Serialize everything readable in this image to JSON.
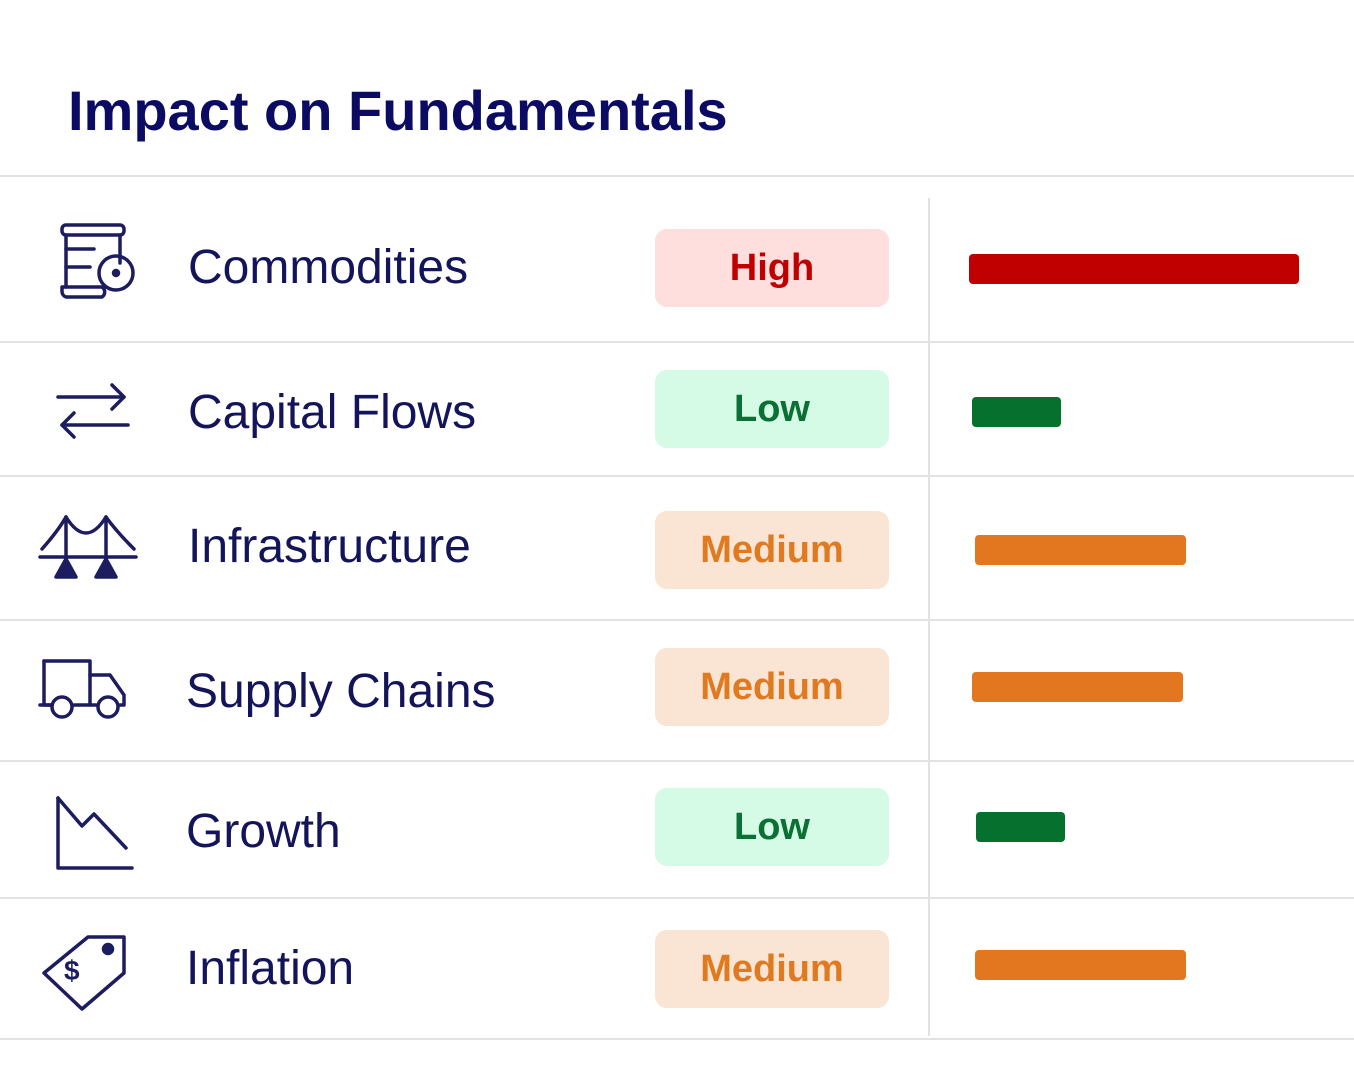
{
  "title": "Impact on Fundamentals",
  "colors": {
    "high_text": "#c00000",
    "high_bg": "#ffdede",
    "low_text": "#0a7034",
    "low_bg": "#d5fae6",
    "medium_text": "#e07a20",
    "medium_bg": "#fae4d3",
    "high_bar": "#c00000",
    "low_bar": "#06702f",
    "medium_bar": "#e2771f"
  },
  "rows": [
    {
      "label": "Commodities",
      "icon": "commodities-icon",
      "impact": "High",
      "level": 1.0
    },
    {
      "label": "Capital Flows",
      "icon": "capital-flows-icon",
      "impact": "Low",
      "level": 0.27
    },
    {
      "label": "Infrastructure",
      "icon": "bridge-icon",
      "impact": "Medium",
      "level": 0.64
    },
    {
      "label": "Supply Chains",
      "icon": "truck-icon",
      "impact": "Medium",
      "level": 0.64
    },
    {
      "label": "Growth",
      "icon": "declining-chart-icon",
      "impact": "Low",
      "level": 0.27
    },
    {
      "label": "Inflation",
      "icon": "price-tag-icon",
      "impact": "Medium",
      "level": 0.64
    }
  ]
}
